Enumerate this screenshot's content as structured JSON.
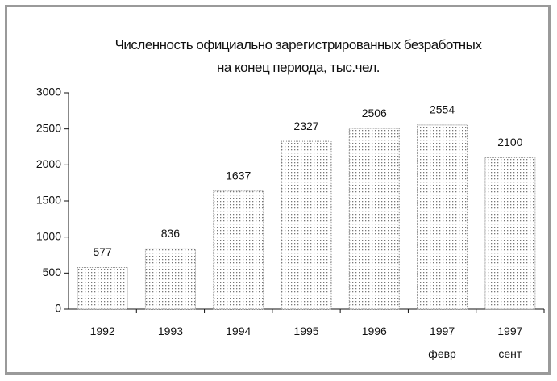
{
  "chart_data": {
    "type": "bar",
    "title": "Численность официально зарегистрированных безработных\nна конец периода, тыс.чел.",
    "categories": [
      "1992",
      "1993",
      "1994",
      "1995",
      "1996",
      "1997\nфевр",
      "1997\nсент"
    ],
    "values": [
      577,
      836,
      1637,
      2327,
      2506,
      2554,
      2100
    ],
    "color": "#888888",
    "ylim": [
      0,
      3000
    ],
    "yticks": [
      0,
      500,
      1000,
      1500,
      2000,
      2500,
      3000
    ],
    "grid": false
  }
}
